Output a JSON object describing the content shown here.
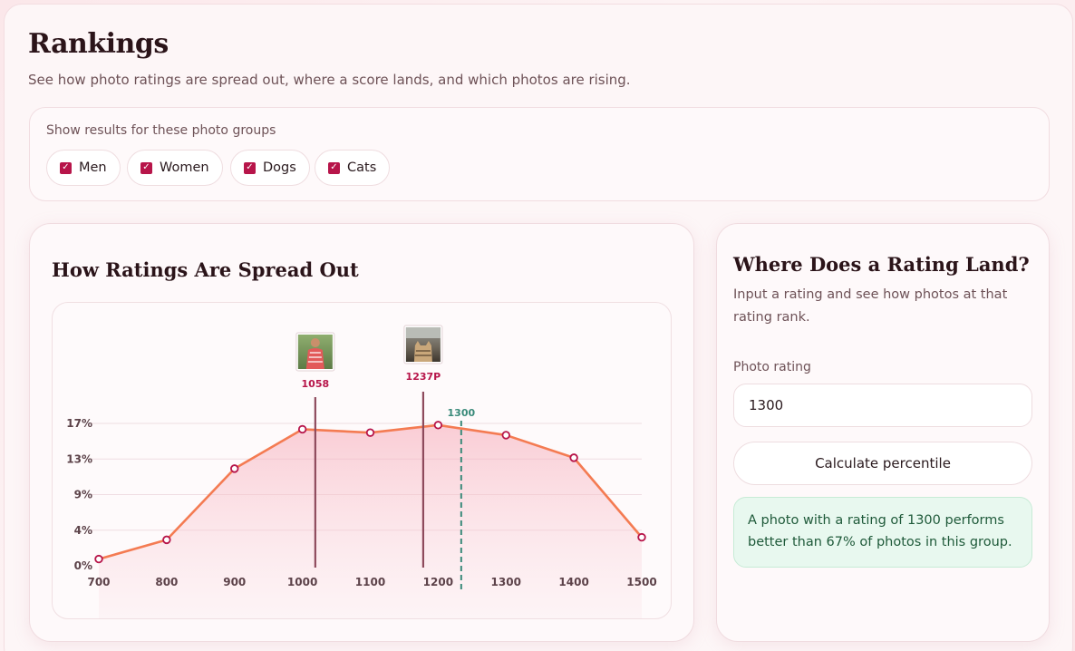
{
  "header": {
    "title": "Rankings",
    "subtitle": "See how photo ratings are spread out, where a score lands, and which photos are rising."
  },
  "filters": {
    "label": "Show results for these photo groups",
    "groups": [
      {
        "label": "Men",
        "checked": true
      },
      {
        "label": "Women",
        "checked": true
      },
      {
        "label": "Dogs",
        "checked": true
      },
      {
        "label": "Cats",
        "checked": true
      }
    ]
  },
  "distribution": {
    "title": "How Ratings Are Spread Out"
  },
  "chart_data": {
    "type": "area",
    "x": [
      700,
      800,
      900,
      1000,
      1100,
      1200,
      1300,
      1400,
      1500
    ],
    "y": [
      0.8,
      3.1,
      11.6,
      16.3,
      15.9,
      16.8,
      15.6,
      12.9,
      3.4
    ],
    "xticks": [
      "700",
      "800",
      "900",
      "1000",
      "1100",
      "1200",
      "1300",
      "1400",
      "1500"
    ],
    "yticks": [
      "0%",
      "4%",
      "9%",
      "13%",
      "17%"
    ],
    "ytick_values": [
      0,
      4.25,
      8.5,
      12.75,
      17
    ],
    "xlim": [
      700,
      1500
    ],
    "ylim": [
      0,
      17
    ],
    "grid": true,
    "line_color": "#f47b52",
    "marker_color": "#b7154a",
    "markers": [
      {
        "x": 1019,
        "label": "1058",
        "icon": "woman-photo-thumbnail",
        "color": "#8e4a5c"
      },
      {
        "x": 1178,
        "label": "1237P",
        "icon": "cat-photo-thumbnail",
        "color": "#8e4a5c"
      },
      {
        "x": 1234,
        "label": "1300",
        "icon": "",
        "color": "#3a8a7a",
        "dashed": true
      }
    ]
  },
  "rating_tool": {
    "title": "Where Does a Rating Land?",
    "description": "Input a rating and see how photos at that rating rank.",
    "field_label": "Photo rating",
    "field_value": "1300",
    "button_label": "Calculate percentile",
    "result_text": "A photo with a rating of 1300 performs better than 67% of photos in this group."
  },
  "colors": {
    "accent": "#b7154a",
    "line": "#f47b52",
    "success_bg": "#e8f8ef",
    "success_text": "#1f5a3a"
  }
}
